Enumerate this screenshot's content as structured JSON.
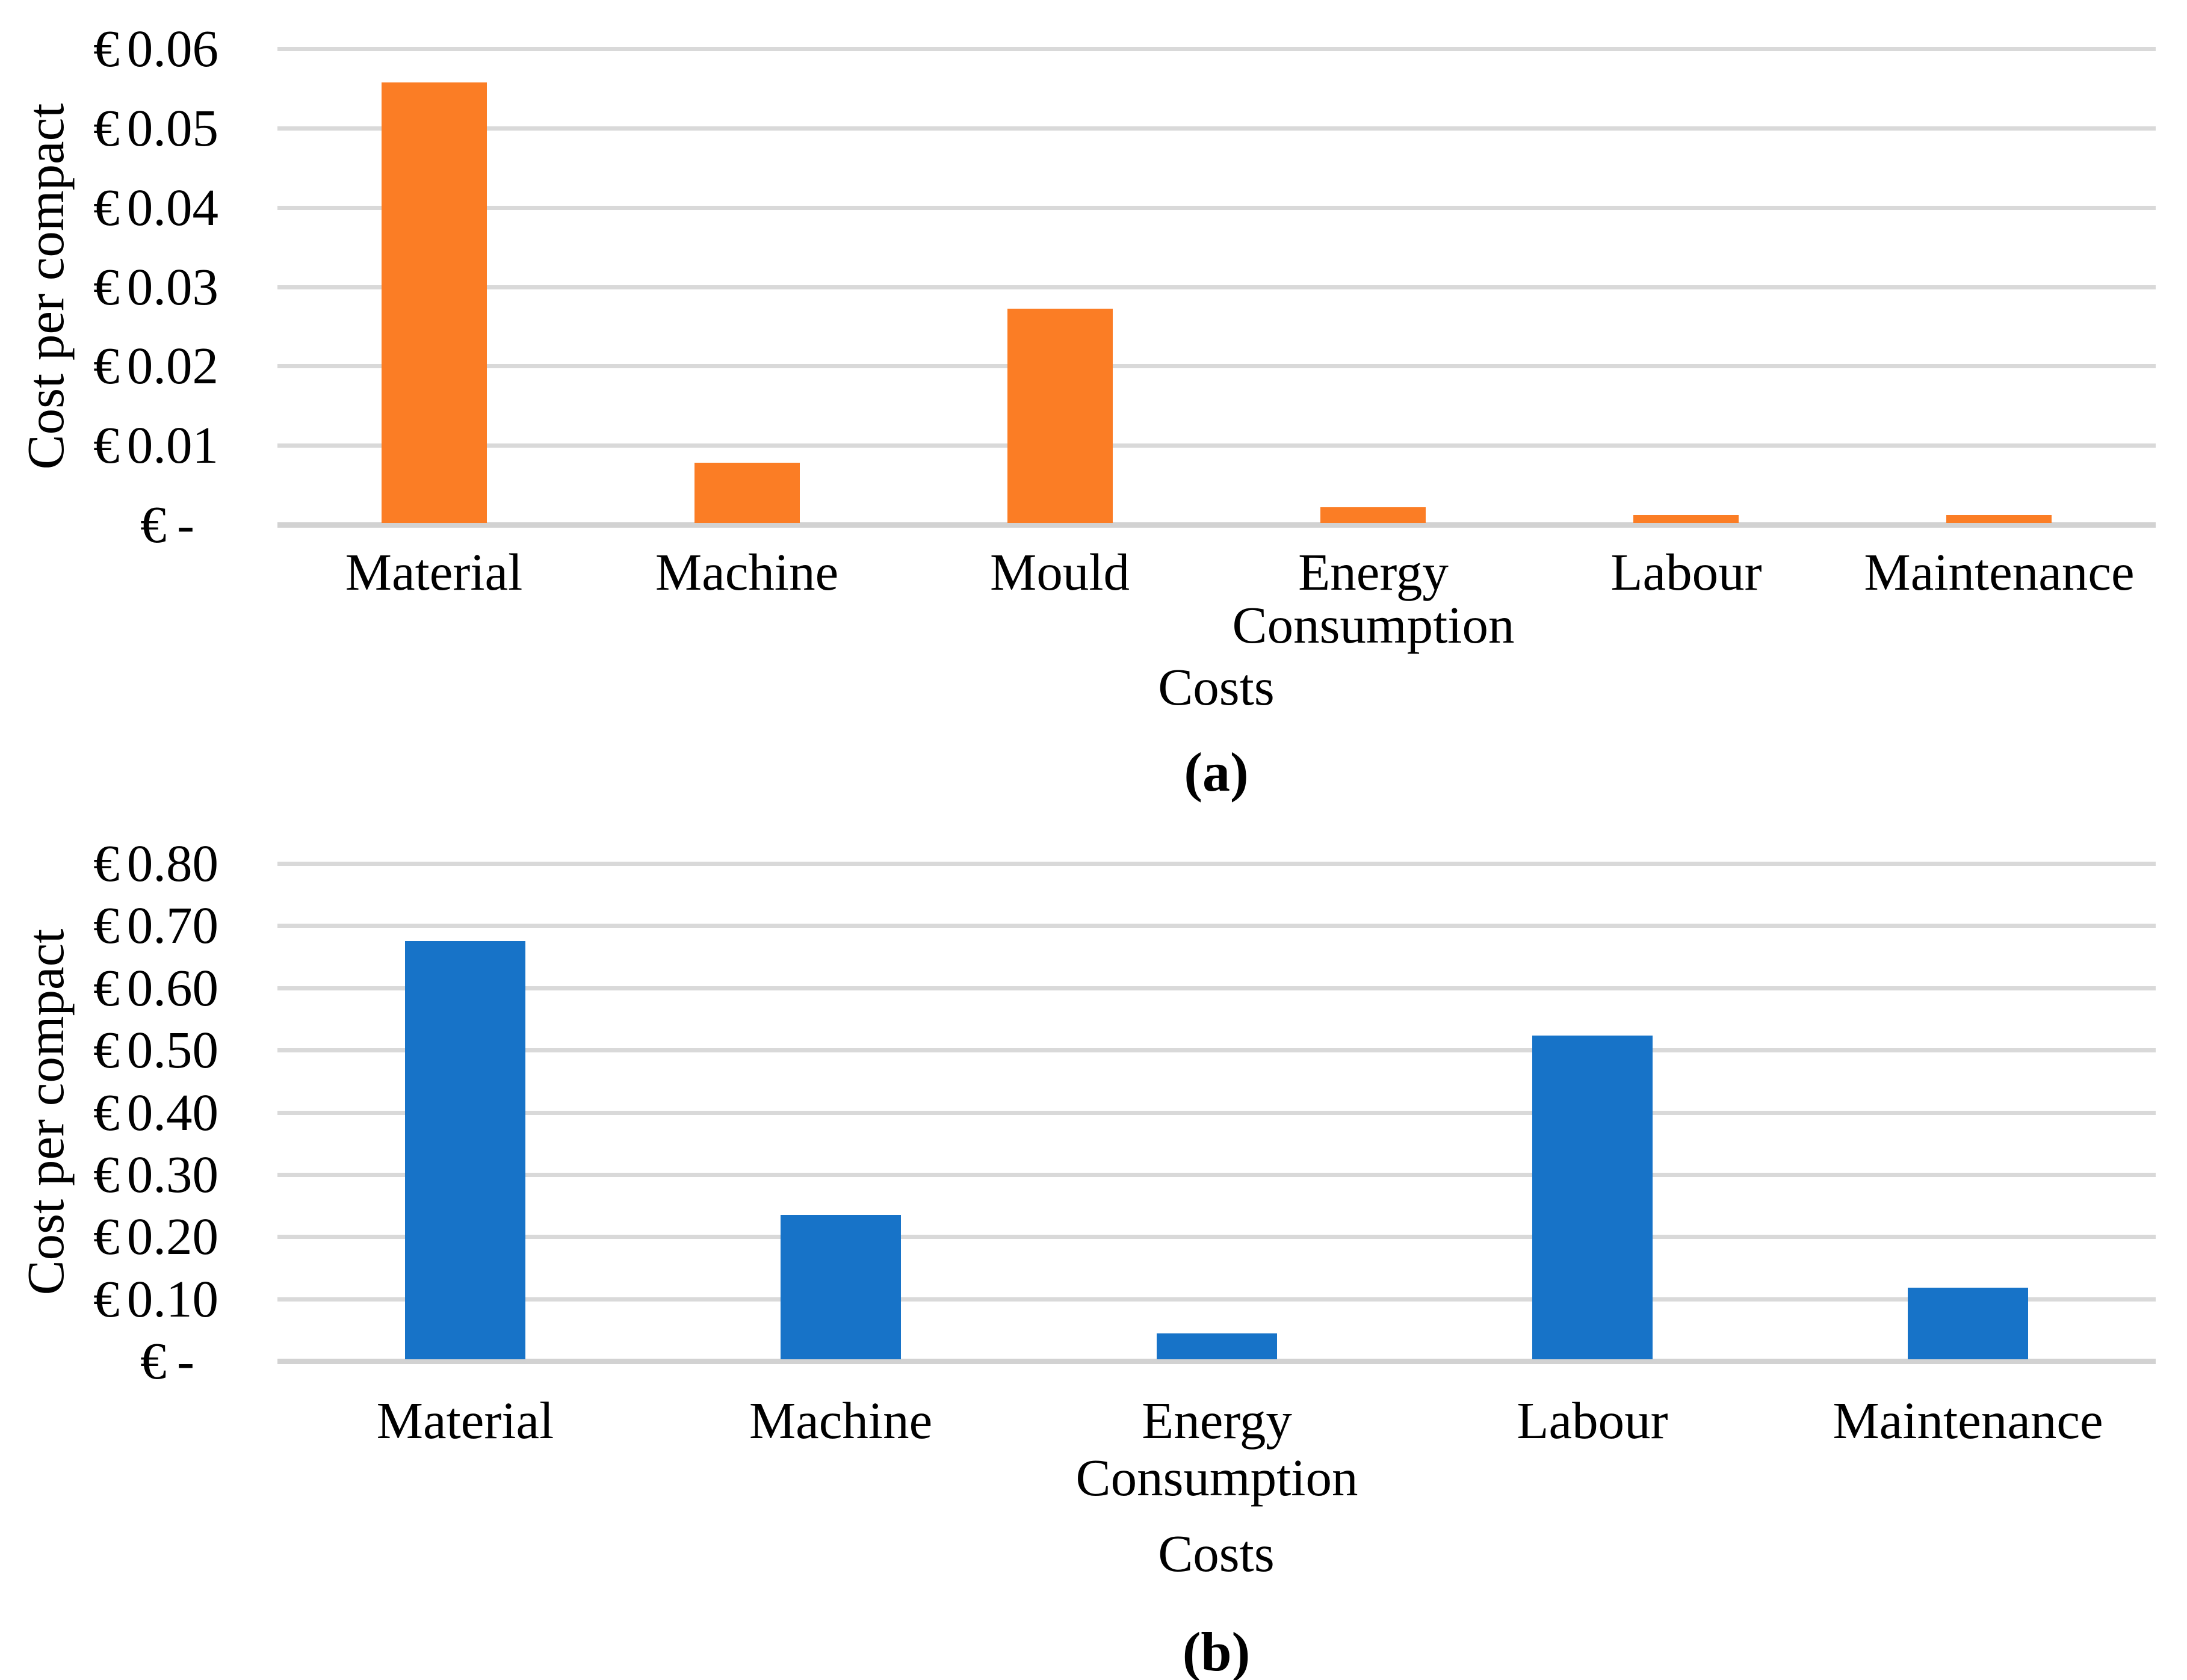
{
  "page": {
    "background": "#ffffff"
  },
  "charts": [
    {
      "id": "a",
      "y_axis_title": "Cost per compact",
      "x_axis_title": "Costs",
      "caption": "(a)",
      "currency_symbol": "€",
      "bar_color": "#FB7D25",
      "gridline_color": "#D9D9D9",
      "axis_line_color": "#D2D2D2",
      "y_tick_labels": [
        "0.06",
        "0.05",
        "0.04",
        "0.03",
        "0.02",
        "0.01",
        "-"
      ],
      "category_lines": [
        [
          "Material"
        ],
        [
          "Machine"
        ],
        [
          "Mould"
        ],
        [
          "Energy",
          "Consumption"
        ],
        [
          "Labour"
        ],
        [
          "Maintenance"
        ]
      ]
    },
    {
      "id": "b",
      "y_axis_title": "Cost per compact",
      "x_axis_title": "Costs",
      "caption": "(b)",
      "currency_symbol": "€",
      "bar_color": "#1773C8",
      "gridline_color": "#D9D9D9",
      "axis_line_color": "#D2D2D2",
      "y_tick_labels": [
        "0.80",
        "0.70",
        "0.60",
        "0.50",
        "0.40",
        "0.30",
        "0.20",
        "0.10",
        "-"
      ],
      "category_lines": [
        [
          "Material"
        ],
        [
          "Machine"
        ],
        [
          "Energy",
          "Consumption"
        ],
        [
          "Labour"
        ],
        [
          "Maintenance"
        ]
      ]
    }
  ],
  "chart_data": [
    {
      "type": "bar",
      "title": "",
      "categories": [
        "Material",
        "Machine",
        "Mould",
        "Energy Consumption",
        "Labour",
        "Maintenance"
      ],
      "values": [
        0.0555,
        0.0076,
        0.027,
        0.002,
        0.001,
        0.001
      ],
      "xlabel": "Costs",
      "ylabel": "Cost per compact",
      "ylim": [
        0,
        0.06
      ],
      "ytick_step": 0.01,
      "ytick_format": "€ 0.00 accounting, zero shown as € -",
      "bar_color": "#FB7D25",
      "grid": true,
      "legend": false,
      "caption": "(a)"
    },
    {
      "type": "bar",
      "title": "",
      "categories": [
        "Material",
        "Machine",
        "Energy Consumption",
        "Labour",
        "Maintenance"
      ],
      "values": [
        0.672,
        0.232,
        0.042,
        0.52,
        0.115
      ],
      "xlabel": "Costs",
      "ylabel": "Cost per compact",
      "ylim": [
        0,
        0.8
      ],
      "ytick_step": 0.1,
      "ytick_format": "€ 0.00 accounting, zero shown as € -",
      "bar_color": "#1773C8",
      "grid": true,
      "legend": false,
      "caption": "(b)"
    }
  ]
}
